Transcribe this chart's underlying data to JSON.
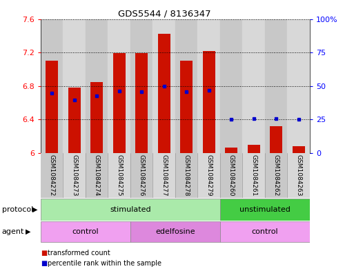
{
  "title": "GDS5544 / 8136347",
  "samples": [
    "GSM1084272",
    "GSM1084273",
    "GSM1084274",
    "GSM1084275",
    "GSM1084276",
    "GSM1084277",
    "GSM1084278",
    "GSM1084279",
    "GSM1084260",
    "GSM1084261",
    "GSM1084262",
    "GSM1084263"
  ],
  "red_values": [
    7.1,
    6.78,
    6.85,
    7.19,
    7.19,
    7.42,
    7.1,
    7.22,
    6.07,
    6.1,
    6.32,
    6.08
  ],
  "blue_values": [
    6.72,
    6.63,
    6.68,
    6.74,
    6.73,
    6.8,
    6.73,
    6.75,
    6.4,
    6.41,
    6.41,
    6.4
  ],
  "ymin": 6.0,
  "ymax": 7.6,
  "yticks_left": [
    6.0,
    6.4,
    6.8,
    7.2,
    7.6
  ],
  "ytick_labels_left": [
    "6",
    "6.4",
    "6.8",
    "7.2",
    "7.6"
  ],
  "right_ytick_percents": [
    0,
    25,
    50,
    75,
    100
  ],
  "right_ytick_labels": [
    "0",
    "25",
    "50",
    "75",
    "100%"
  ],
  "bar_color": "#cc1100",
  "dot_color": "#0000cc",
  "bg_color": "#ffffff",
  "col_colors": [
    "#c8c8c8",
    "#d8d8d8"
  ],
  "protocol_color_stimulated": "#aaeaaa",
  "protocol_color_unstimulated": "#44cc44",
  "agent_color_light": "#f0a0f0",
  "agent_color_dark": "#dd88dd",
  "bar_width": 0.55,
  "stim_count": 8,
  "ctrl1_count": 4,
  "edel_count": 4,
  "ctrl2_count": 4
}
